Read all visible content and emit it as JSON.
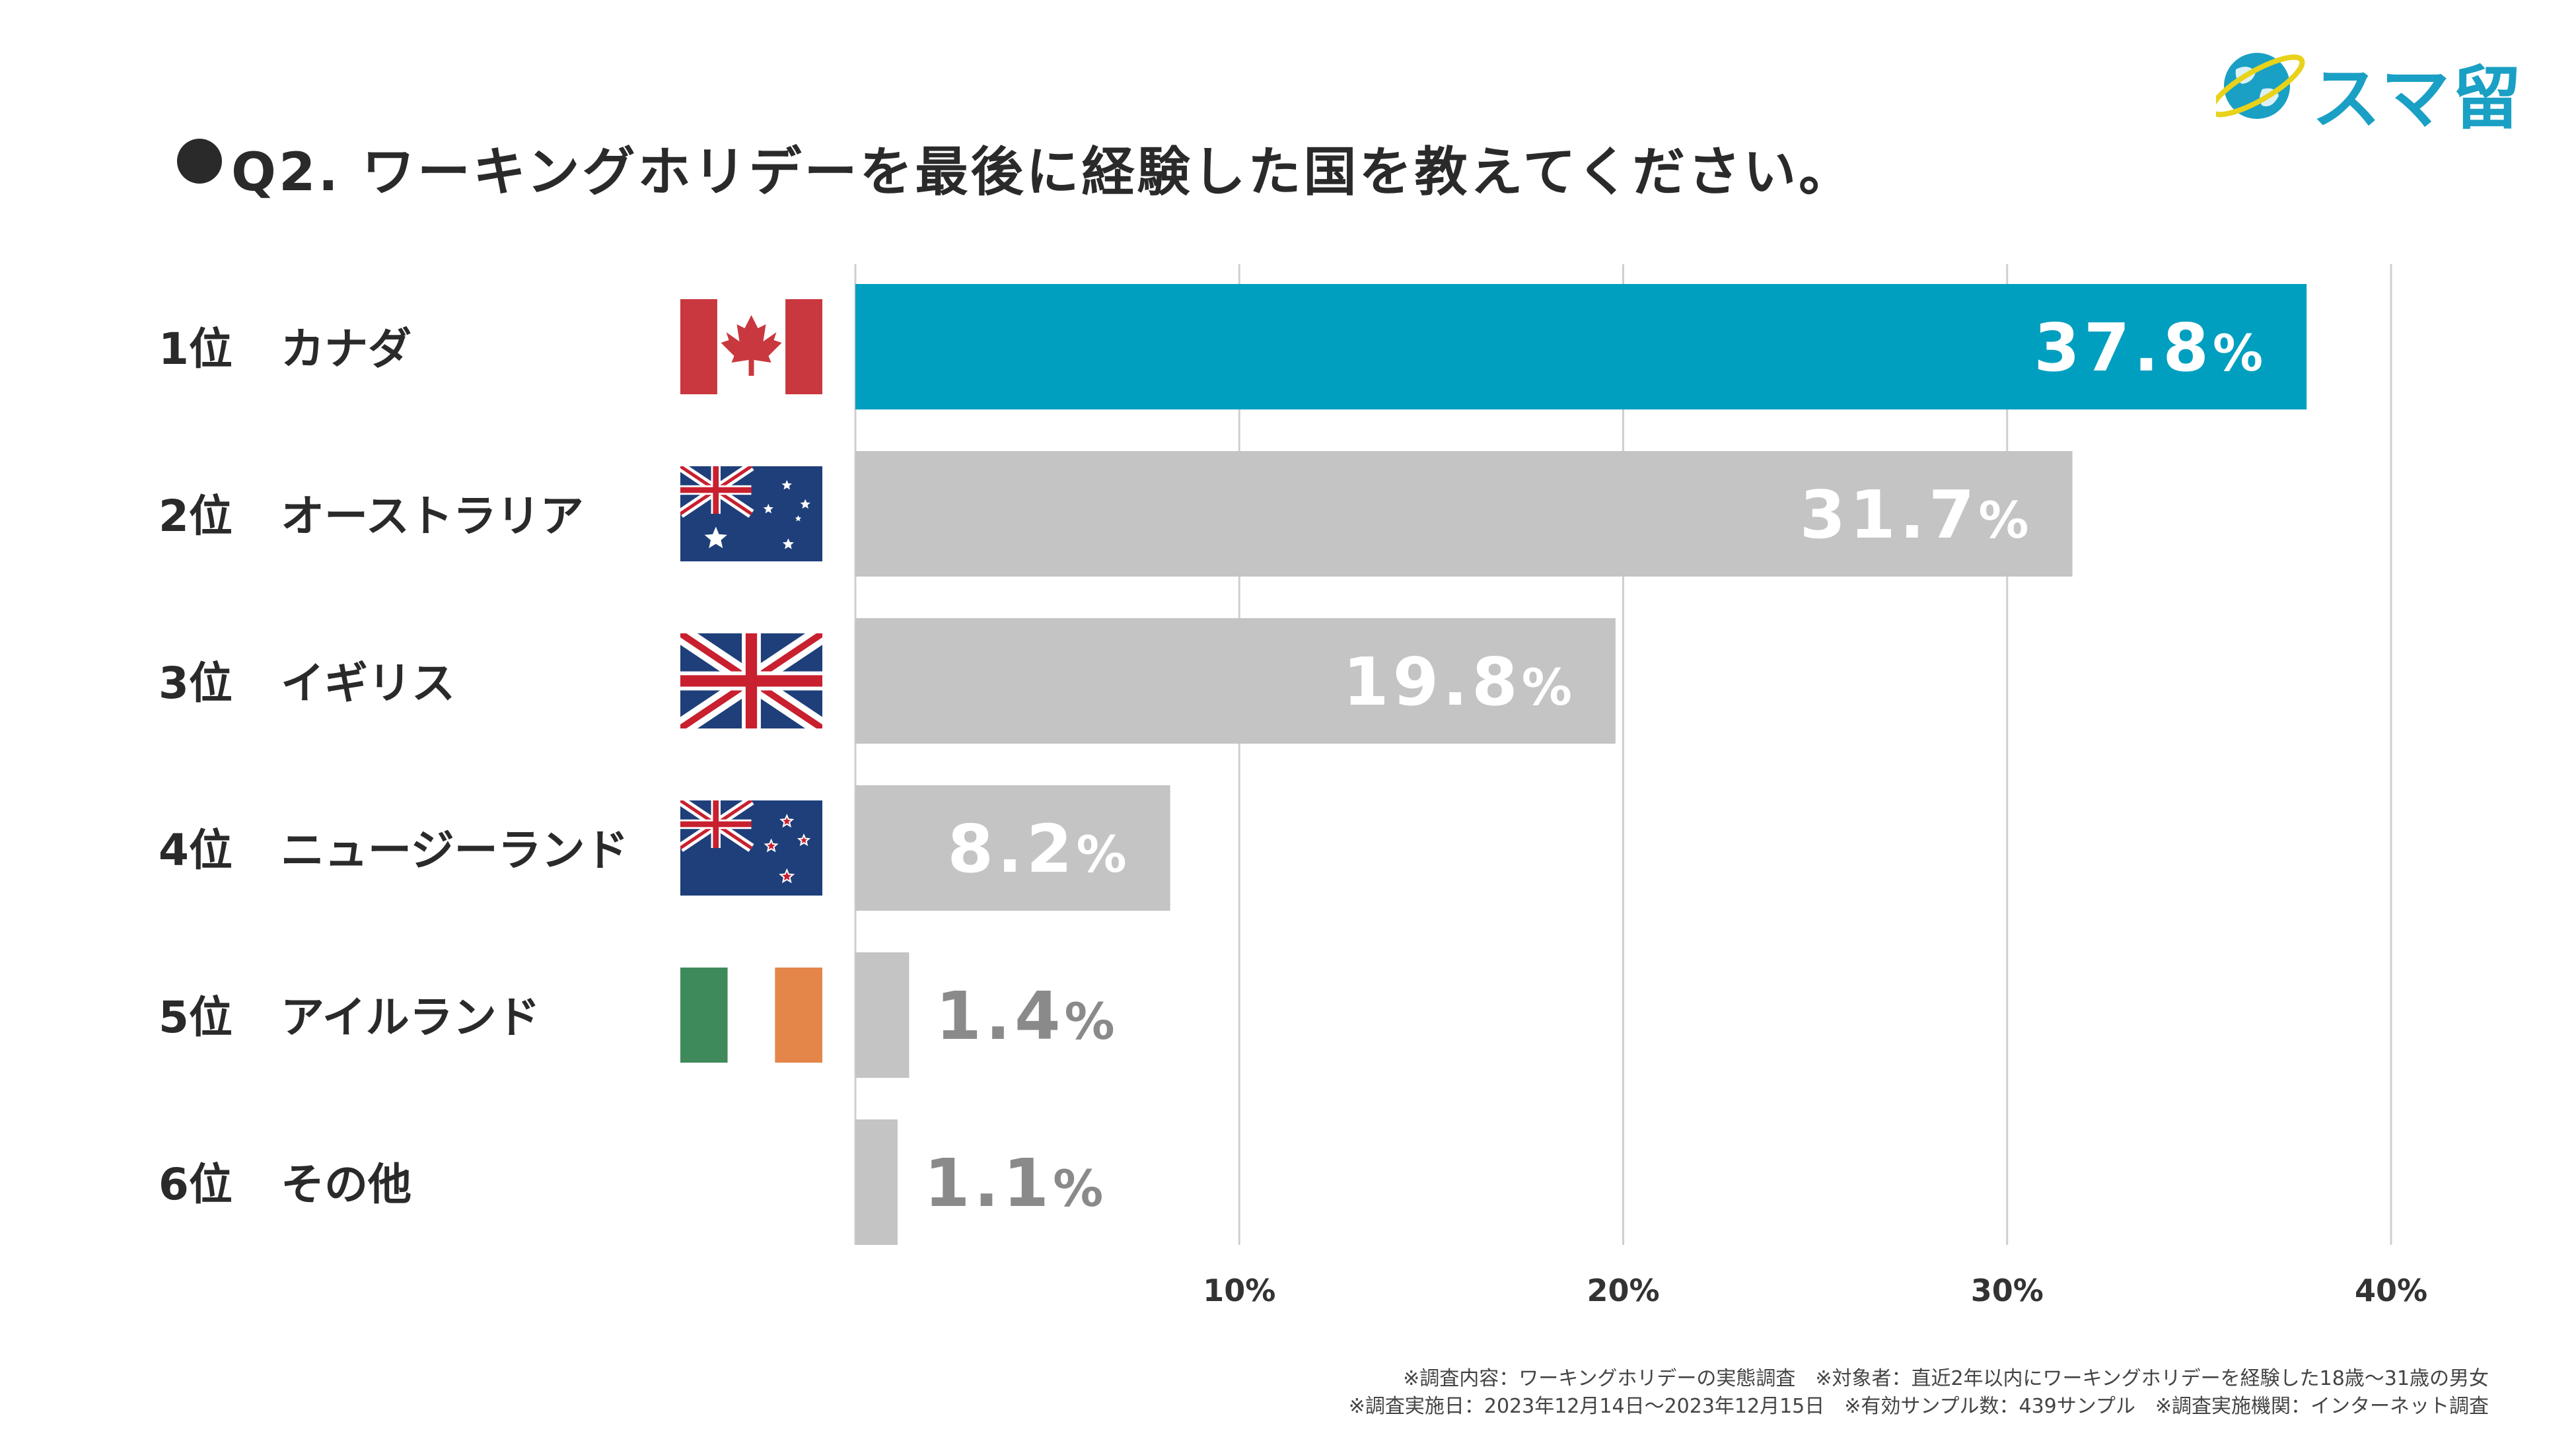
{
  "brand": {
    "name": "スマ留",
    "primary_color": "#009fc0",
    "muted_color": "#c4c4c4"
  },
  "title": "Q2. ワーキングホリデーを最後に経験した国を教えてください。",
  "chart_data": {
    "type": "bar",
    "orientation": "horizontal",
    "title": "Q2. ワーキングホリデーを最後に経験した国を教えてください。",
    "unit": "%",
    "xlim": [
      0,
      40
    ],
    "xticks": [
      10,
      20,
      30,
      40
    ],
    "xtick_labels": [
      "10%",
      "20%",
      "30%",
      "40%"
    ],
    "grid": true,
    "categories": [
      {
        "rank": "1位",
        "name": "カナダ",
        "flag": "canada-flag"
      },
      {
        "rank": "2位",
        "name": "オーストラリア",
        "flag": "australia-flag"
      },
      {
        "rank": "3位",
        "name": "イギリス",
        "flag": "uk-flag"
      },
      {
        "rank": "4位",
        "name": "ニュージーランド",
        "flag": "new-zealand-flag"
      },
      {
        "rank": "5位",
        "name": "アイルランド",
        "flag": "ireland-flag"
      },
      {
        "rank": "6位",
        "name": "その他",
        "flag": null
      }
    ],
    "values": [
      37.8,
      31.7,
      19.8,
      8.2,
      1.4,
      1.1
    ],
    "value_labels": [
      "37.8",
      "31.7",
      "19.8",
      "8.2",
      "1.4",
      "1.1"
    ],
    "percent_sign": "%",
    "highlight_index": 0
  },
  "footnotes": {
    "line1": "※調査内容：ワーキングホリデーの実態調査　※対象者：直近2年以内にワーキングホリデーを経験した18歳〜31歳の男女",
    "line2": "※調査実施日：2023年12月14日〜2023年12月15日　※有効サンプル数：439サンプル　※調査実施機関：インターネット調査"
  }
}
